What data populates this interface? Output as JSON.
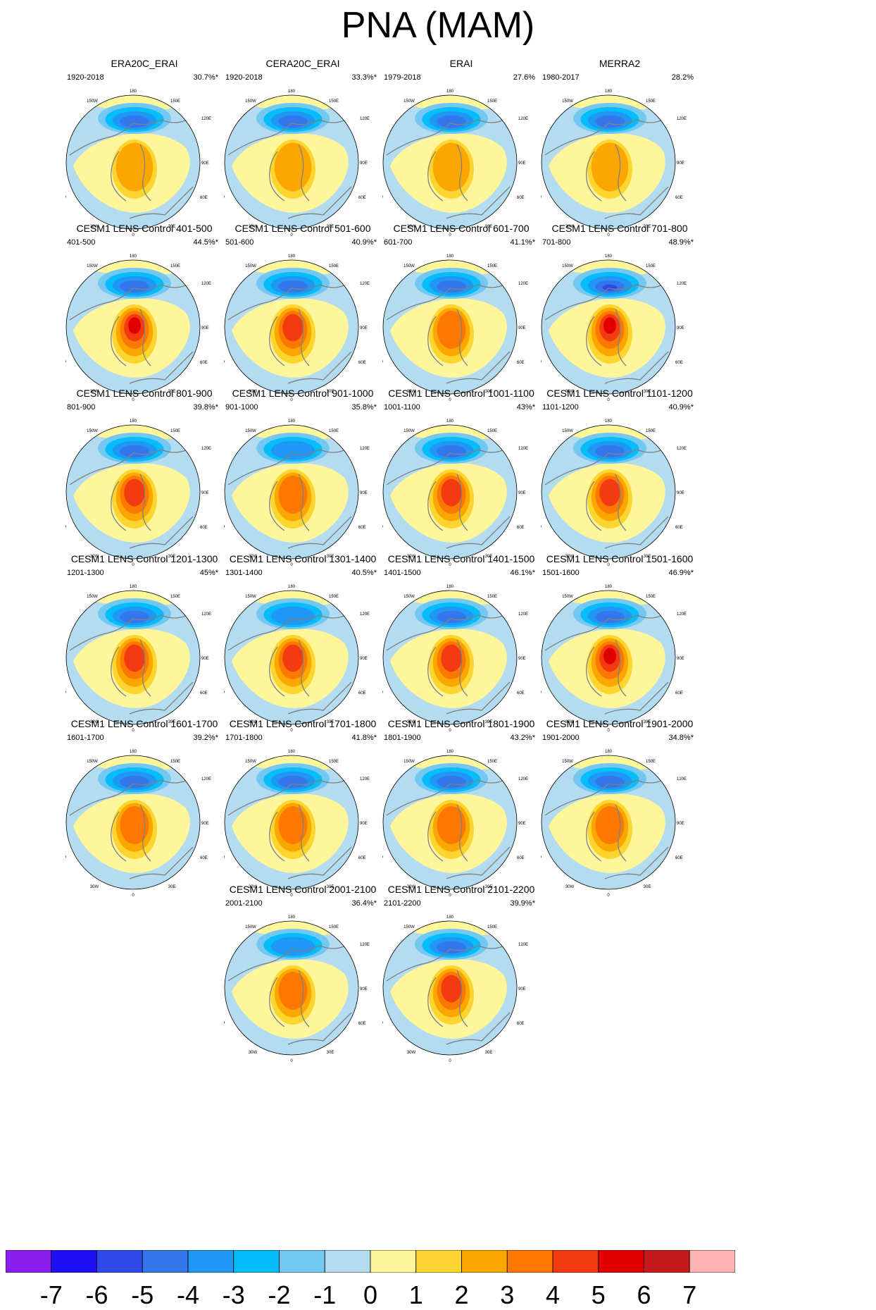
{
  "title": "PNA (MAM)",
  "chart_data": {
    "type": "heatmap",
    "description_units": "pattern anomaly",
    "panels": [
      {
        "title": "ERA20C_ERAI",
        "period": "1920-2018",
        "variance": "30.7%*",
        "pos_max": 2,
        "neg_min": -4
      },
      {
        "title": "CERA20C_ERAI",
        "period": "1920-2018",
        "variance": "33.3%*",
        "pos_max": 2,
        "neg_min": -4
      },
      {
        "title": "ERAI",
        "period": "1979-2018",
        "variance": "27.6%",
        "pos_max": 2,
        "neg_min": -4
      },
      {
        "title": "MERRA2",
        "period": "1980-2017",
        "variance": "28.2%",
        "pos_max": 2,
        "neg_min": -4
      },
      {
        "title": "CESM1 LENS Control 401-500",
        "period": "401-500",
        "variance": "44.5%*",
        "pos_max": 5,
        "neg_min": -4
      },
      {
        "title": "CESM1 LENS Control 501-600",
        "period": "501-600",
        "variance": "40.9%*",
        "pos_max": 4,
        "neg_min": -4
      },
      {
        "title": "CESM1 LENS Control 601-700",
        "period": "601-700",
        "variance": "41.1%*",
        "pos_max": 3,
        "neg_min": -4
      },
      {
        "title": "CESM1 LENS Control 701-800",
        "period": "701-800",
        "variance": "48.9%*",
        "pos_max": 5,
        "neg_min": -5
      },
      {
        "title": "CESM1 LENS Control 801-900",
        "period": "801-900",
        "variance": "39.8%*",
        "pos_max": 4,
        "neg_min": -4
      },
      {
        "title": "CESM1 LENS Control 901-1000",
        "period": "901-1000",
        "variance": "35.8%*",
        "pos_max": 3,
        "neg_min": -3
      },
      {
        "title": "CESM1 LENS Control 1001-1100",
        "period": "1001-1100",
        "variance": "43%*",
        "pos_max": 4,
        "neg_min": -4
      },
      {
        "title": "CESM1 LENS Control 1101-1200",
        "period": "1101-1200",
        "variance": "40.9%*",
        "pos_max": 4,
        "neg_min": -4
      },
      {
        "title": "CESM1 LENS Control 1201-1300",
        "period": "1201-1300",
        "variance": "45%*",
        "pos_max": 4,
        "neg_min": -4
      },
      {
        "title": "CESM1 LENS Control 1301-1400",
        "period": "1301-1400",
        "variance": "40.5%*",
        "pos_max": 4,
        "neg_min": -3
      },
      {
        "title": "CESM1 LENS Control 1401-1500",
        "period": "1401-1500",
        "variance": "46.1%*",
        "pos_max": 4,
        "neg_min": -4
      },
      {
        "title": "CESM1 LENS Control 1501-1600",
        "period": "1501-1600",
        "variance": "46.9%*",
        "pos_max": 5,
        "neg_min": -4
      },
      {
        "title": "CESM1 LENS Control 1601-1700",
        "period": "1601-1700",
        "variance": "39.2%*",
        "pos_max": 3,
        "neg_min": -4
      },
      {
        "title": "CESM1 LENS Control 1701-1800",
        "period": "1701-1800",
        "variance": "41.8%*",
        "pos_max": 3,
        "neg_min": -4
      },
      {
        "title": "CESM1 LENS Control 1801-1900",
        "period": "1801-1900",
        "variance": "43.2%*",
        "pos_max": 3,
        "neg_min": -4
      },
      {
        "title": "CESM1 LENS Control 1901-2000",
        "period": "1901-2000",
        "variance": "34.8%*",
        "pos_max": 3,
        "neg_min": -4
      },
      {
        "title": "CESM1 LENS Control 2001-2100",
        "period": "2001-2100",
        "variance": "36.4%*",
        "pos_max": 3,
        "neg_min": -3
      },
      {
        "title": "CESM1 LENS Control 2101-2200",
        "period": "2101-2200",
        "variance": "39.9%*",
        "pos_max": 4,
        "neg_min": -4
      }
    ],
    "map_labels": {
      "top": "180",
      "top_left": "150W",
      "top_right": "150E",
      "upper_left": "120W",
      "upper_right": "120E",
      "left": "90W",
      "right": "90E",
      "lower_left": "60W",
      "lower_right": "60E",
      "bottom_left": "30W",
      "bottom_right": "30E",
      "bottom": "0"
    },
    "colorbar": {
      "labels": [
        "-7",
        "-6",
        "-5",
        "-4",
        "-3",
        "-2",
        "-1",
        "0",
        "1",
        "2",
        "3",
        "4",
        "5",
        "6",
        "7"
      ],
      "colors": [
        "#8a1ef0",
        "#1e10f5",
        "#2e4ae8",
        "#3477ec",
        "#1f97f5",
        "#05bdfa",
        "#73c8f1",
        "#b3dcf0",
        "#fff59a",
        "#fcd530",
        "#fba700",
        "#fc7800",
        "#f43a10",
        "#e00000",
        "#c81a1a",
        "#ffb4b4"
      ]
    },
    "contour_colors": {
      "-5": "#2e4ae8",
      "-4": "#3477ec",
      "-3": "#1f97f5",
      "-2": "#05bdfa",
      "-1": "#73c8f1",
      "0": "#b3dcf0",
      "pos0": "#fff59a",
      "1": "#fcd530",
      "2": "#fba700",
      "3": "#fc7800",
      "4": "#f43a10",
      "5": "#e00000"
    }
  }
}
